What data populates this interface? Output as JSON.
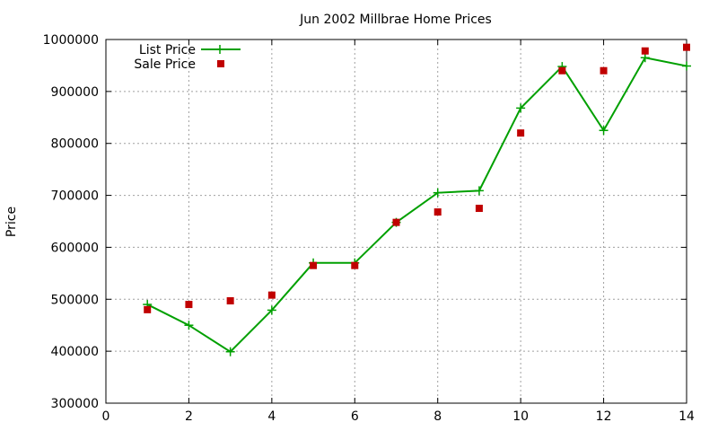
{
  "chart_data": {
    "type": "line",
    "title": "Jun 2002 Millbrae Home Prices",
    "xlabel": "",
    "ylabel": "Price",
    "xlim": [
      0,
      14
    ],
    "ylim": [
      300000,
      1000000
    ],
    "x_ticks": [
      0,
      2,
      4,
      6,
      8,
      10,
      12,
      14
    ],
    "x_tick_labels": [
      "0",
      "2",
      "4",
      "6",
      "8",
      "10",
      "12",
      "14"
    ],
    "y_ticks": [
      300000,
      400000,
      500000,
      600000,
      700000,
      800000,
      900000,
      1000000
    ],
    "y_tick_labels": [
      "300000",
      "400000",
      "500000",
      "600000",
      "700000",
      "800000",
      "900000",
      "1000000"
    ],
    "grid": true,
    "legend_position": "top-left",
    "series": [
      {
        "name": "List Price",
        "style": "line-with-plus-markers",
        "color": "#00a000",
        "x": [
          1,
          2,
          3,
          4,
          5,
          6,
          7,
          8,
          9,
          10,
          11,
          12,
          13,
          14
        ],
        "y": [
          490000,
          450000,
          399000,
          479000,
          570000,
          570000,
          648000,
          705000,
          709000,
          868000,
          948000,
          825000,
          965000,
          949000
        ]
      },
      {
        "name": "Sale Price",
        "style": "square-markers",
        "color": "#c00000",
        "x": [
          1,
          2,
          3,
          4,
          5,
          6,
          7,
          8,
          9,
          10,
          11,
          12,
          13,
          14
        ],
        "y": [
          480000,
          490000,
          497000,
          508000,
          565000,
          565000,
          648000,
          668000,
          675000,
          820000,
          940000,
          940000,
          978000,
          985000
        ]
      }
    ]
  }
}
